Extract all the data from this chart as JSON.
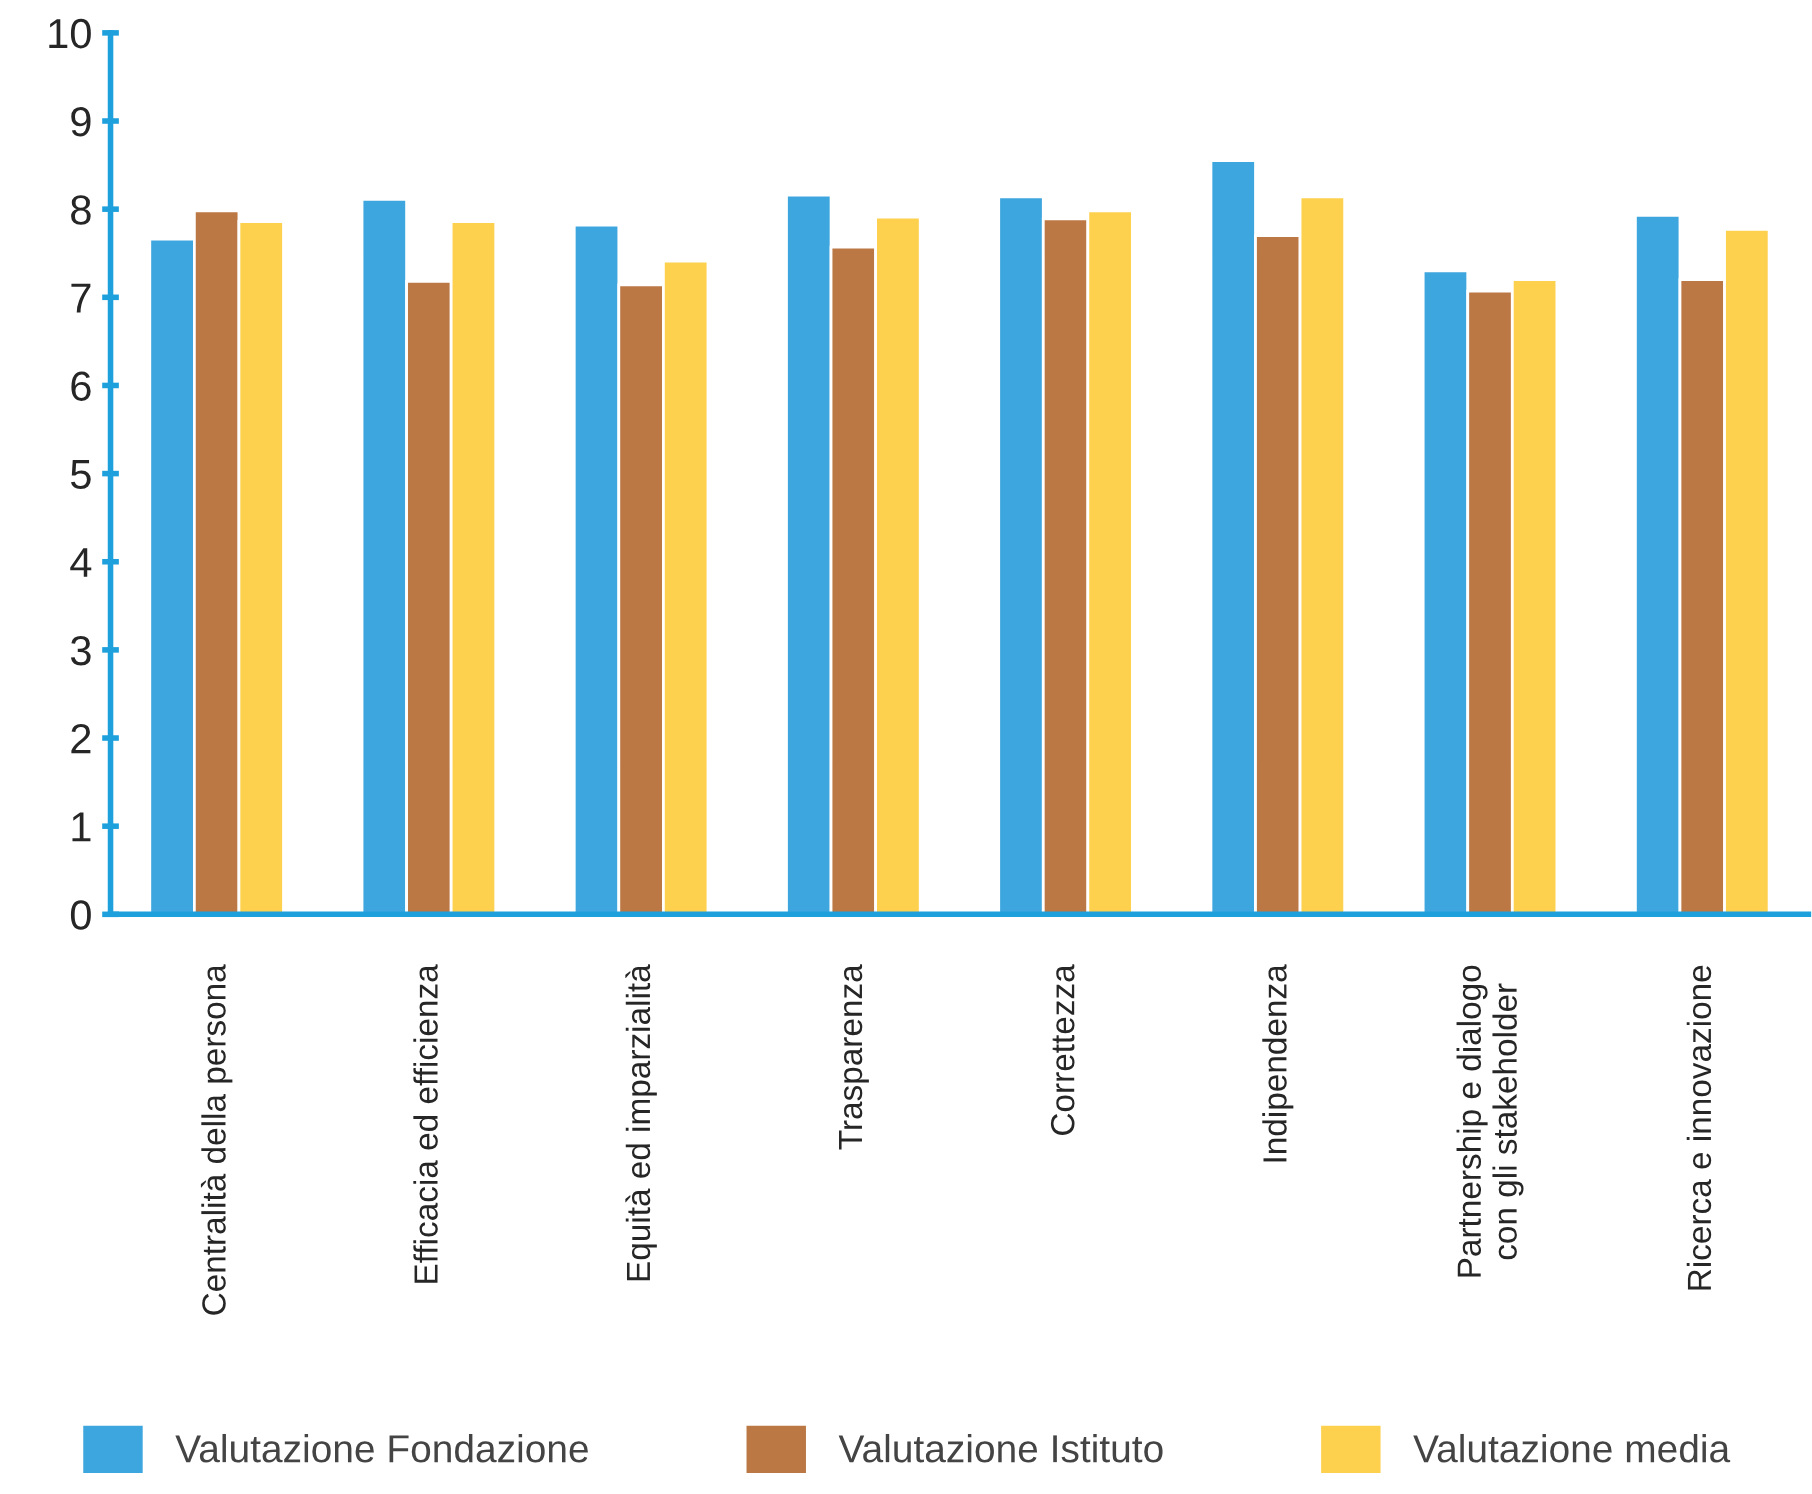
{
  "chart_data": {
    "type": "bar",
    "categories": [
      "Centralità della persona",
      "Efficacia ed efficienza",
      "Equità ed imparzialità",
      "Trasparenza",
      "Correttezza",
      "Indipendenza",
      "Partnership e dialogo\ncon gli stakeholder",
      "Ricerca e innovazione"
    ],
    "series": [
      {
        "name": "Valutazione Fondazione",
        "color": "#3ea6de",
        "values": [
          7.66,
          8.11,
          7.82,
          8.16,
          8.14,
          8.55,
          7.3,
          7.93
        ]
      },
      {
        "name": "Valutazione Istituto",
        "color": "#bb7744",
        "values": [
          7.98,
          7.18,
          7.14,
          7.57,
          7.89,
          7.7,
          7.07,
          7.2
        ]
      },
      {
        "name": "Valutazione media",
        "color": "#fdd04e",
        "values": [
          7.86,
          7.86,
          7.41,
          7.91,
          7.98,
          8.14,
          7.2,
          7.77
        ]
      }
    ],
    "ylim": [
      0,
      10
    ],
    "yticks": [
      0,
      1,
      2,
      3,
      4,
      5,
      6,
      7,
      8,
      9,
      10
    ],
    "grid": false,
    "legend": "bottom"
  }
}
